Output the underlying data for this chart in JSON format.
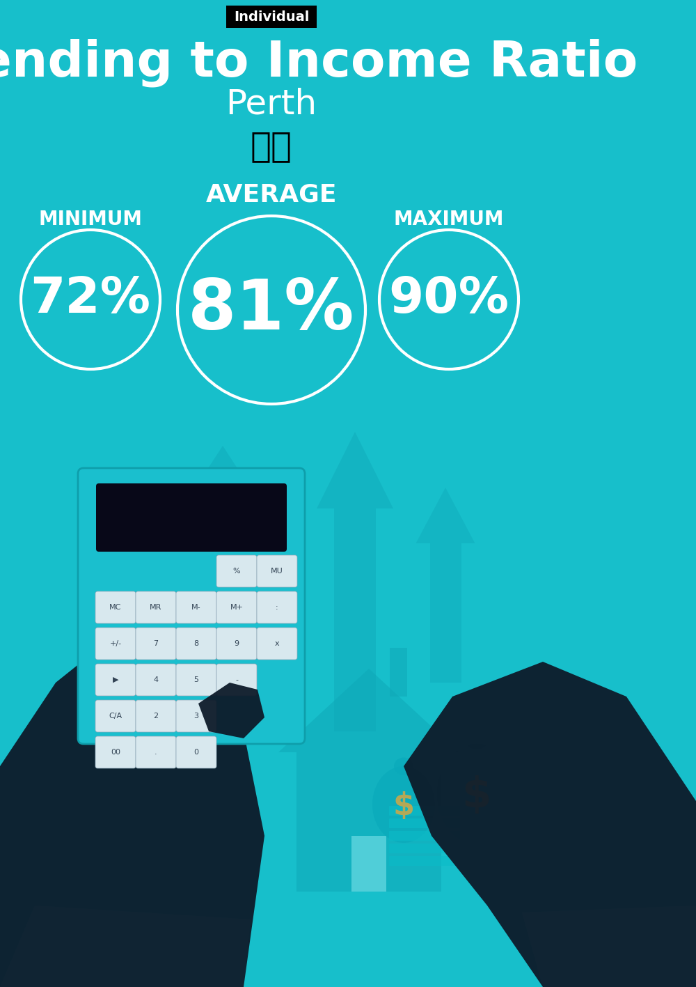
{
  "title": "Spending to Income Ratio",
  "subtitle": "Perth",
  "tag": "Individual",
  "bg_color": "#17BFCB",
  "min_label": "MINIMUM",
  "avg_label": "AVERAGE",
  "max_label": "MAXIMUM",
  "min_value": "72%",
  "avg_value": "81%",
  "max_value": "90%",
  "text_color": "white",
  "tag_bg": "#000000",
  "tag_text": "white",
  "arrow_color": "#0FA8B8",
  "house_color": "#0FA8B8",
  "hand_color": "#0D1B2A",
  "sleeve_color": "#5DD5E0",
  "calc_color": "#1ABFCE",
  "calc_border": "#0E9EAB",
  "display_color": "#080818",
  "button_color": "#D8E8EE",
  "money_color": "#0AAABB",
  "dollar_color": "#C8A84B"
}
